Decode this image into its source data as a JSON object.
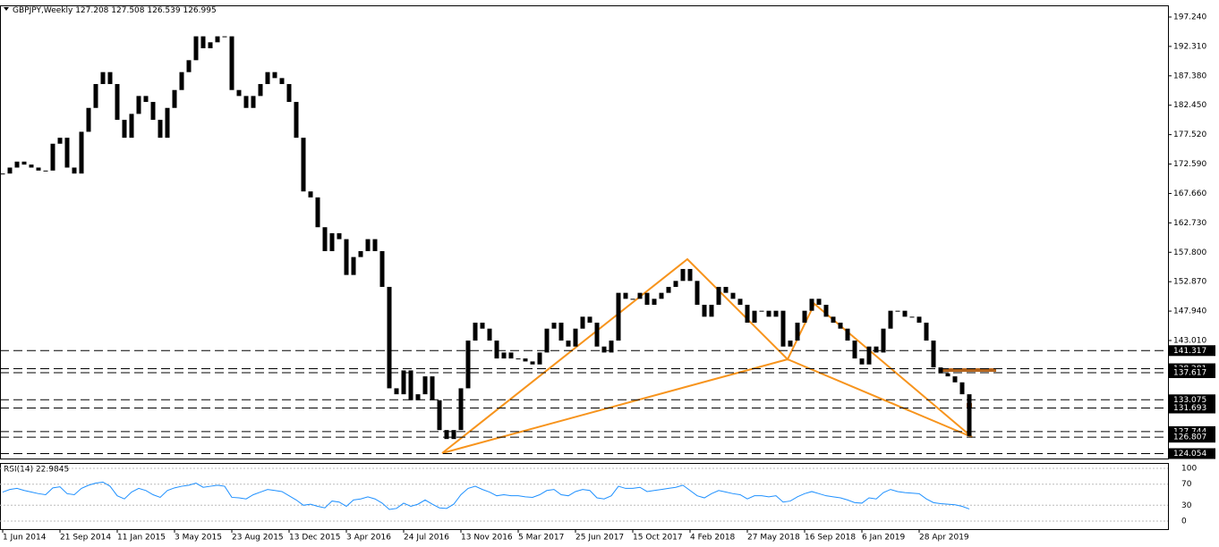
{
  "chart_data": [
    {
      "type": "candlestick",
      "title": "GBPJPY,Weekly",
      "ohlc": [
        127.208,
        127.508,
        126.539,
        126.995
      ],
      "categories": [
        "1 Jun 2014",
        null,
        null,
        null,
        null,
        null,
        null,
        null,
        "21 Sep 2014",
        null,
        null,
        null,
        null,
        null,
        null,
        null,
        "11 Jan 2015",
        null,
        null,
        null,
        null,
        null,
        null,
        null,
        "3 May 2015",
        null,
        null,
        null,
        null,
        null,
        null,
        null,
        "23 Aug 2015",
        null,
        null,
        null,
        null,
        null,
        null,
        null,
        "13 Dec 2015",
        null,
        null,
        null,
        null,
        null,
        null,
        null,
        "3 Apr 2016",
        null,
        null,
        null,
        null,
        null,
        null,
        null,
        "24 Jul 2016",
        null,
        null,
        null,
        null,
        null,
        null,
        null,
        "13 Nov 2016",
        null,
        null,
        null,
        null,
        null,
        null,
        null,
        "5 Mar 2017",
        null,
        null,
        null,
        null,
        null,
        null,
        null,
        "25 Jun 2017",
        null,
        null,
        null,
        null,
        null,
        null,
        null,
        "15 Oct 2017",
        null,
        null,
        null,
        null,
        null,
        null,
        null,
        "4 Feb 2018",
        null,
        null,
        null,
        null,
        null,
        null,
        null,
        "27 May 2018",
        null,
        null,
        null,
        null,
        null,
        null,
        null,
        "16 Sep 2018",
        null,
        null,
        null,
        null,
        null,
        null,
        null,
        "6 Jan 2019",
        null,
        null,
        null,
        null,
        null,
        null,
        null,
        "28 Apr 2019",
        null,
        null,
        null,
        null,
        null,
        null,
        null
      ],
      "close": [
        171,
        172,
        173,
        172.5,
        172,
        171.5,
        171.5,
        176,
        177,
        172,
        171,
        178,
        182,
        186,
        188,
        186,
        180,
        177,
        181,
        184,
        183,
        180,
        177,
        182,
        185,
        188,
        190,
        194,
        192,
        193,
        194,
        194,
        185,
        184,
        182,
        184,
        186,
        188,
        187,
        186,
        183,
        177,
        168,
        167,
        162,
        158,
        161,
        160,
        154,
        157,
        158,
        160,
        158,
        152,
        135,
        134,
        138,
        133,
        134,
        137,
        133,
        128,
        126.5,
        128,
        135,
        143,
        146,
        145,
        143,
        140,
        141,
        140,
        140,
        139.5,
        139,
        141,
        145,
        146,
        143,
        142,
        145,
        147,
        146,
        142,
        141,
        143,
        151,
        150,
        150,
        151,
        149,
        150,
        151,
        152,
        153,
        155,
        153,
        149,
        147,
        149,
        152,
        151,
        150,
        149,
        146,
        148,
        148,
        147,
        148,
        142,
        143,
        146,
        148,
        150,
        149,
        147,
        146,
        145,
        143,
        140,
        139,
        142,
        141,
        145,
        148,
        148,
        147,
        147,
        146,
        143,
        138.5,
        137.5,
        137,
        136,
        134,
        127
      ],
      "color": "#000000",
      "ylim": [
        123.23,
        199.19
      ],
      "yticks": [
        {
          "value": 197.24,
          "label": "197.240"
        },
        {
          "value": 192.31,
          "label": "192.310"
        },
        {
          "value": 187.38,
          "label": "187.380"
        },
        {
          "value": 182.45,
          "label": "182.450"
        },
        {
          "value": 177.52,
          "label": "177.520"
        },
        {
          "value": 172.59,
          "label": "172.590"
        },
        {
          "value": 167.66,
          "label": "167.660"
        },
        {
          "value": 162.73,
          "label": "162.730"
        },
        {
          "value": 157.8,
          "label": "157.800"
        },
        {
          "value": 152.87,
          "label": "152.870"
        },
        {
          "value": 147.94,
          "label": "147.940"
        },
        {
          "value": 143.01,
          "label": "143.010"
        }
      ],
      "hlines": [
        141.317,
        138.281,
        137.617,
        133.075,
        131.693,
        127.744,
        126.807,
        124.054
      ]
    },
    {
      "type": "line",
      "title": "RSI(14) 22.9845",
      "color": "#1e90ff",
      "values": [
        55,
        60,
        62,
        58,
        55,
        52,
        50,
        63,
        65,
        52,
        50,
        62,
        68,
        72,
        74,
        66,
        48,
        42,
        55,
        62,
        58,
        50,
        45,
        58,
        63,
        66,
        68,
        72,
        64,
        66,
        68,
        66,
        45,
        44,
        42,
        50,
        55,
        60,
        58,
        56,
        48,
        40,
        30,
        32,
        28,
        25,
        38,
        36,
        28,
        40,
        42,
        46,
        42,
        34,
        22,
        24,
        34,
        28,
        32,
        40,
        32,
        25,
        24,
        32,
        50,
        62,
        66,
        60,
        55,
        48,
        50,
        48,
        48,
        46,
        45,
        50,
        58,
        60,
        50,
        48,
        56,
        60,
        58,
        44,
        42,
        48,
        66,
        62,
        62,
        64,
        56,
        58,
        60,
        62,
        64,
        68,
        58,
        48,
        44,
        52,
        58,
        55,
        52,
        50,
        42,
        48,
        48,
        46,
        48,
        36,
        38,
        46,
        52,
        56,
        52,
        48,
        46,
        44,
        40,
        35,
        34,
        44,
        42,
        54,
        60,
        56,
        54,
        53,
        52,
        42,
        35,
        33,
        32,
        31,
        28,
        23
      ],
      "ylim": [
        -15.3,
        110.2
      ],
      "yticks": [
        100,
        70,
        30,
        0
      ]
    }
  ]
}
